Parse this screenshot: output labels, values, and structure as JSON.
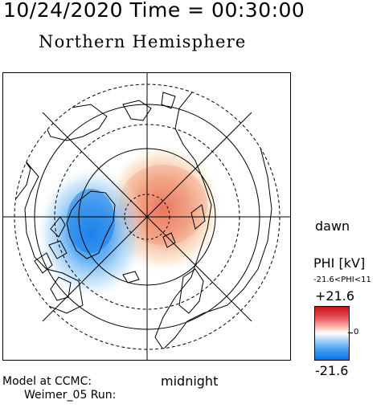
{
  "header": {
    "datetime": "10/24/2020 Time = 00:30:00",
    "hemisphere": "Northern Hemisphere"
  },
  "map": {
    "projection": "polar-stereographic-north",
    "grid": "on",
    "potential_pattern": {
      "dawn_cell": "positive",
      "dusk_cell": "negative",
      "colors": {
        "positive": "#e8505a",
        "negative": "#0a72e6"
      }
    }
  },
  "labels": {
    "dawn": "dawn",
    "midnight": "midnight"
  },
  "colorbar": {
    "title": "PHI [kV]",
    "range_text": "-21.6<PHI<11",
    "max_label": "+21.6",
    "zero_label": "0",
    "min_label": "-21.6",
    "colors": {
      "max": "#c81416",
      "mid": "#ffffff",
      "min": "#0a72e6"
    }
  },
  "footer": {
    "model": "Model at CCMC:",
    "run": "Weimer_05 Run:"
  }
}
